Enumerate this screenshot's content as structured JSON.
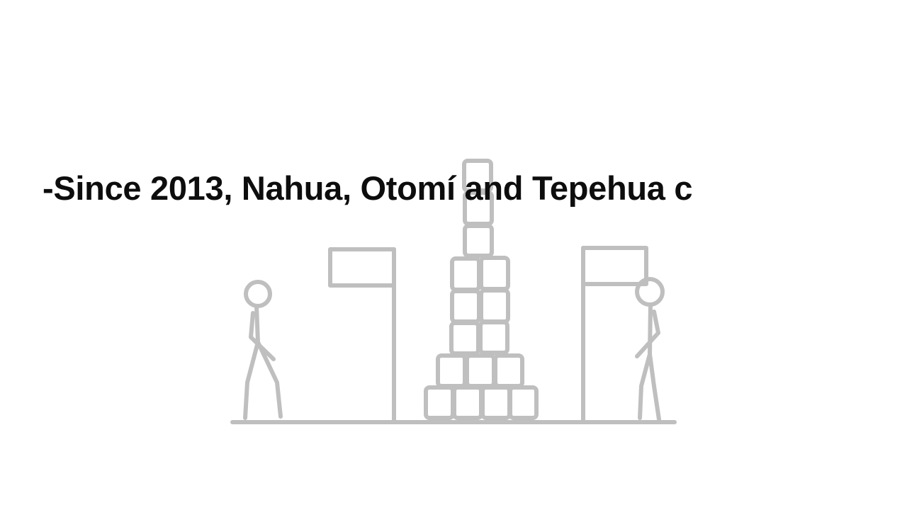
{
  "slide": {
    "caption": "-Since 2013, Nahua, Otomí and Tepehua c"
  },
  "illustration": {
    "stroke_color": "#bfbfbf",
    "elements": [
      "ground-line",
      "left-stick-figure",
      "left-flag",
      "block-tower",
      "right-flag",
      "right-stick-figure"
    ]
  }
}
